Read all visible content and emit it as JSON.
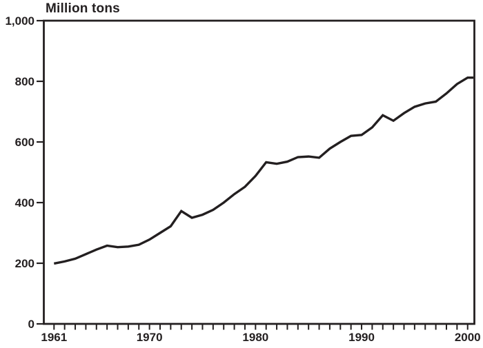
{
  "page": {
    "background_color": "#ffffff",
    "text_color": "#231f20"
  },
  "chart_data": {
    "type": "line",
    "title": "Million tons",
    "line_color": "#231f20",
    "grid": "off",
    "legend": "none",
    "frame": "full-box",
    "xlim": [
      1961,
      2001
    ],
    "ylim": [
      0,
      1000
    ],
    "x": [
      1961,
      1962,
      1963,
      1964,
      1965,
      1966,
      1967,
      1968,
      1969,
      1970,
      1971,
      1972,
      1973,
      1974,
      1975,
      1976,
      1977,
      1978,
      1979,
      1980,
      1981,
      1982,
      1983,
      1984,
      1985,
      1986,
      1987,
      1988,
      1989,
      1990,
      1991,
      1992,
      1993,
      1994,
      1995,
      1996,
      1997,
      1998,
      1999,
      2000,
      2001
    ],
    "values": [
      199,
      206,
      215,
      230,
      245,
      258,
      253,
      255,
      261,
      278,
      300,
      322,
      372,
      350,
      360,
      376,
      400,
      428,
      452,
      488,
      533,
      528,
      535,
      550,
      552,
      548,
      578,
      600,
      620,
      623,
      648,
      688,
      670,
      695,
      716,
      727,
      733,
      760,
      791,
      812,
      812
    ],
    "y_ticks": [
      0,
      200,
      400,
      600,
      800,
      1000
    ],
    "y_tick_labels": [
      "0",
      "200",
      "400",
      "600",
      "800",
      "1,000"
    ],
    "x_minor_tick_start": 1961,
    "x_minor_tick_end": 2000,
    "x_minor_tick_step": 1,
    "x_ticks_labeled": [
      1961,
      1970,
      1980,
      1990,
      2000
    ],
    "x_tick_labels": [
      "1961",
      "1970",
      "1980",
      "1990",
      "2000"
    ]
  }
}
